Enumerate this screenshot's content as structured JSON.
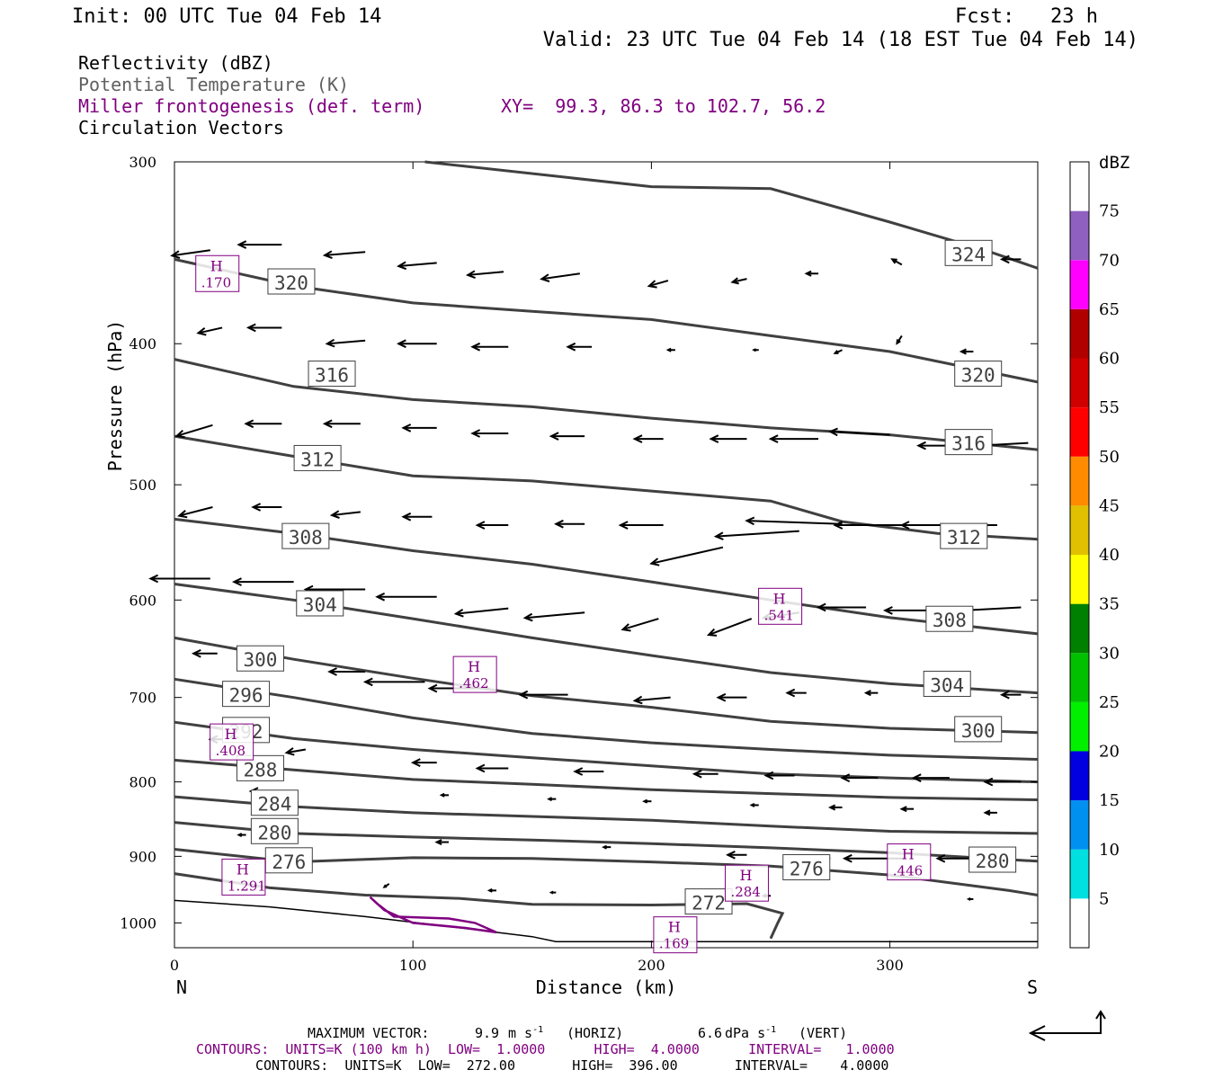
{
  "header": {
    "init": "Init: 00 UTC Tue 04 Feb 14",
    "fcst": "Fcst:   23 h",
    "valid": "Valid: 23 UTC Tue 04 Feb 14 (18 EST Tue 04 Feb 14)",
    "fields": [
      {
        "text": "Reflectivity (dBZ)",
        "color": "#000000"
      },
      {
        "text": "Potential Temperature (K)",
        "color": "#606060"
      },
      {
        "text": "Miller frontogenesis (def. term)",
        "color": "#800080"
      },
      {
        "text": "Circulation Vectors",
        "color": "#000000"
      }
    ],
    "xy": "XY=  99.3, 86.3 to 102.7, 56.2"
  },
  "chart_data": {
    "type": "cross-section",
    "ylabel": "Pressure (hPa)",
    "xlabel": "Distance (km)",
    "xlim": [
      0,
      362
    ],
    "ylim": [
      1040,
      300
    ],
    "y_scale": "log-pressure (inverted)",
    "x_ticks": [
      0,
      100,
      200,
      300
    ],
    "y_ticks": [
      300,
      400,
      500,
      600,
      700,
      800,
      900,
      1000
    ],
    "x_end_labels": {
      "left": "N",
      "right": "S"
    },
    "theta_contours": [
      {
        "value": 324,
        "points": [
          [
            105,
            300
          ],
          [
            200,
            312
          ],
          [
            250,
            313
          ],
          [
            300,
            330
          ],
          [
            340,
            345
          ],
          [
            362,
            355
          ]
        ],
        "labels": [
          [
            333,
            347
          ]
        ]
      },
      {
        "value": 320,
        "points": [
          [
            0,
            350
          ],
          [
            50,
            365
          ],
          [
            100,
            375
          ],
          [
            150,
            380
          ],
          [
            200,
            385
          ],
          [
            250,
            395
          ],
          [
            300,
            405
          ],
          [
            362,
            425
          ]
        ],
        "labels": [
          [
            49,
            363
          ],
          [
            337,
            420
          ]
        ]
      },
      {
        "value": 316,
        "points": [
          [
            0,
            410
          ],
          [
            50,
            428
          ],
          [
            100,
            437
          ],
          [
            150,
            442
          ],
          [
            200,
            450
          ],
          [
            250,
            457
          ],
          [
            300,
            462
          ],
          [
            362,
            473
          ]
        ],
        "labels": [
          [
            66,
            420
          ],
          [
            333,
            468
          ]
        ]
      },
      {
        "value": 312,
        "points": [
          [
            0,
            463
          ],
          [
            50,
            478
          ],
          [
            100,
            493
          ],
          [
            150,
            497
          ],
          [
            200,
            505
          ],
          [
            250,
            513
          ],
          [
            280,
            530
          ],
          [
            320,
            540
          ],
          [
            362,
            545
          ]
        ],
        "labels": [
          [
            60,
            480
          ],
          [
            331,
            543
          ]
        ]
      },
      {
        "value": 308,
        "points": [
          [
            0,
            528
          ],
          [
            50,
            540
          ],
          [
            100,
            555
          ],
          [
            150,
            567
          ],
          [
            200,
            583
          ],
          [
            250,
            600
          ],
          [
            300,
            617
          ],
          [
            362,
            633
          ]
        ],
        "labels": [
          [
            55,
            543
          ],
          [
            325,
            619
          ]
        ]
      },
      {
        "value": 304,
        "points": [
          [
            0,
            585
          ],
          [
            50,
            600
          ],
          [
            100,
            618
          ],
          [
            150,
            637
          ],
          [
            200,
            655
          ],
          [
            250,
            673
          ],
          [
            300,
            685
          ],
          [
            362,
            695
          ]
        ],
        "labels": [
          [
            61,
            604
          ],
          [
            324,
            686
          ]
        ]
      },
      {
        "value": 300,
        "points": [
          [
            0,
            637
          ],
          [
            50,
            659
          ],
          [
            100,
            679
          ],
          [
            150,
            698
          ],
          [
            200,
            711
          ],
          [
            250,
            727
          ],
          [
            300,
            735
          ],
          [
            362,
            740
          ]
        ],
        "labels": [
          [
            36,
            659
          ],
          [
            337,
            737
          ]
        ]
      },
      {
        "value": 296,
        "points": [
          [
            0,
            680
          ],
          [
            50,
            700
          ],
          [
            100,
            723
          ],
          [
            150,
            741
          ],
          [
            200,
            752
          ],
          [
            250,
            760
          ],
          [
            300,
            767
          ],
          [
            362,
            772
          ]
        ],
        "labels": [
          [
            30,
            697
          ]
        ]
      },
      {
        "value": 292,
        "points": [
          [
            0,
            728
          ],
          [
            50,
            747
          ],
          [
            100,
            760
          ],
          [
            150,
            770
          ],
          [
            200,
            780
          ],
          [
            250,
            790
          ],
          [
            300,
            795
          ],
          [
            362,
            800
          ]
        ],
        "labels": [
          [
            30,
            738
          ]
        ]
      },
      {
        "value": 288,
        "points": [
          [
            0,
            773
          ],
          [
            50,
            785
          ],
          [
            100,
            797
          ],
          [
            150,
            803
          ],
          [
            200,
            810
          ],
          [
            250,
            815
          ],
          [
            300,
            820
          ],
          [
            362,
            823
          ]
        ],
        "labels": [
          [
            36,
            784
          ]
        ]
      },
      {
        "value": 284,
        "points": [
          [
            0,
            819
          ],
          [
            50,
            832
          ],
          [
            100,
            840
          ],
          [
            150,
            845
          ],
          [
            200,
            850
          ],
          [
            250,
            858
          ],
          [
            300,
            865
          ],
          [
            362,
            868
          ]
        ],
        "labels": [
          [
            42,
            828
          ]
        ]
      },
      {
        "value": 280,
        "points": [
          [
            0,
            853
          ],
          [
            50,
            868
          ],
          [
            100,
            873
          ],
          [
            150,
            877
          ],
          [
            200,
            882
          ],
          [
            250,
            888
          ],
          [
            300,
            895
          ],
          [
            362,
            907
          ]
        ],
        "labels": [
          [
            42,
            866
          ],
          [
            343,
            906
          ]
        ]
      },
      {
        "value": 276,
        "points": [
          [
            0,
            890
          ],
          [
            50,
            908
          ],
          [
            100,
            902
          ],
          [
            150,
            903
          ],
          [
            200,
            908
          ],
          [
            250,
            914
          ],
          [
            300,
            927
          ],
          [
            350,
            950
          ],
          [
            362,
            957
          ]
        ],
        "labels": [
          [
            48,
            907
          ],
          [
            265,
            917
          ]
        ]
      },
      {
        "value": 272,
        "points": [
          [
            0,
            925
          ],
          [
            40,
            946
          ],
          [
            80,
            957
          ],
          [
            120,
            962
          ],
          [
            150,
            971
          ],
          [
            200,
            972
          ],
          [
            240,
            970
          ],
          [
            255,
            985
          ],
          [
            253,
            1000
          ],
          [
            250,
            1025
          ]
        ],
        "labels": [
          [
            224,
            968
          ]
        ]
      }
    ],
    "terrain": {
      "points": [
        [
          0,
          965
        ],
        [
          40,
          975
        ],
        [
          80,
          990
        ],
        [
          120,
          1008
        ],
        [
          150,
          1022
        ],
        [
          160,
          1030
        ],
        [
          362,
          1030
        ]
      ]
    },
    "frontogenesis_maxima": [
      {
        "x": 18,
        "p": 358,
        "label": ".170"
      },
      {
        "x": 254,
        "p": 606,
        "label": ".541"
      },
      {
        "x": 126,
        "p": 675,
        "label": ".462"
      },
      {
        "x": 24,
        "p": 751,
        "label": ".408"
      },
      {
        "x": 29,
        "p": 930,
        "label": "1.291"
      },
      {
        "x": 240,
        "p": 939,
        "label": ".284"
      },
      {
        "x": 308,
        "p": 908,
        "label": ".446"
      },
      {
        "x": 210,
        "p": 1019,
        "label": ".169"
      }
    ],
    "frontogenesis_contour": {
      "points": [
        [
          82,
          960
        ],
        [
          88,
          980
        ],
        [
          100,
          1000
        ],
        [
          122,
          1008
        ],
        [
          135,
          1015
        ],
        [
          126,
          1000
        ],
        [
          115,
          993
        ],
        [
          92,
          990
        ],
        [
          85,
          970
        ]
      ]
    },
    "vectors": [
      [
        15,
        345,
        -16,
        5
      ],
      [
        45,
        342,
        -18,
        0
      ],
      [
        80,
        346,
        -17,
        3
      ],
      [
        110,
        352,
        -16,
        3
      ],
      [
        138,
        357,
        -15,
        3
      ],
      [
        170,
        358,
        -16,
        5
      ],
      [
        207,
        362,
        -8,
        5
      ],
      [
        240,
        361,
        -6,
        3
      ],
      [
        270,
        358,
        -5,
        0
      ],
      [
        305,
        353,
        -4,
        -5
      ],
      [
        355,
        350,
        -8,
        0
      ],
      [
        20,
        390,
        -10,
        5
      ],
      [
        45,
        390,
        -14,
        0
      ],
      [
        80,
        398,
        -16,
        3
      ],
      [
        110,
        400,
        -16,
        0
      ],
      [
        140,
        402,
        -15,
        0
      ],
      [
        175,
        402,
        -10,
        0
      ],
      [
        210,
        404,
        -3,
        0
      ],
      [
        245,
        404,
        -2,
        0
      ],
      [
        280,
        404,
        -3,
        3
      ],
      [
        305,
        395,
        -2,
        7
      ],
      [
        335,
        405,
        -5,
        0
      ],
      [
        16,
        455,
        -15,
        10
      ],
      [
        45,
        454,
        -15,
        0
      ],
      [
        78,
        454,
        -15,
        0
      ],
      [
        110,
        457,
        -14,
        0
      ],
      [
        140,
        461,
        -15,
        0
      ],
      [
        172,
        463,
        -14,
        0
      ],
      [
        205,
        465,
        -12,
        0
      ],
      [
        240,
        465,
        -15,
        0
      ],
      [
        270,
        465,
        -20,
        0
      ],
      [
        300,
        462,
        -25,
        -3
      ],
      [
        330,
        470,
        -18,
        0
      ],
      [
        358,
        468,
        -25,
        3
      ],
      [
        16,
        518,
        -14,
        8
      ],
      [
        45,
        518,
        -12,
        0
      ],
      [
        78,
        522,
        -12,
        3
      ],
      [
        108,
        526,
        -12,
        0
      ],
      [
        140,
        533,
        -13,
        0
      ],
      [
        172,
        532,
        -12,
        0
      ],
      [
        205,
        533,
        -18,
        0
      ],
      [
        230,
        552,
        -30,
        15
      ],
      [
        262,
        538,
        -35,
        5
      ],
      [
        280,
        532,
        -40,
        -3
      ],
      [
        312,
        533,
        -35,
        0
      ],
      [
        345,
        533,
        -40,
        0
      ],
      [
        15,
        580,
        -25,
        0
      ],
      [
        50,
        583,
        -25,
        0
      ],
      [
        80,
        590,
        -25,
        0
      ],
      [
        110,
        597,
        -25,
        0
      ],
      [
        140,
        608,
        -22,
        5
      ],
      [
        172,
        612,
        -25,
        5
      ],
      [
        203,
        618,
        -15,
        10
      ],
      [
        242,
        618,
        -18,
        15
      ],
      [
        262,
        612,
        -15,
        5
      ],
      [
        290,
        607,
        -20,
        0
      ],
      [
        318,
        610,
        -20,
        0
      ],
      [
        355,
        607,
        -25,
        3
      ],
      [
        18,
        653,
        -10,
        0
      ],
      [
        46,
        662,
        -15,
        0
      ],
      [
        80,
        672,
        -15,
        0
      ],
      [
        105,
        683,
        -25,
        0
      ],
      [
        132,
        690,
        -25,
        0
      ],
      [
        165,
        697,
        -20,
        0
      ],
      [
        208,
        700,
        -15,
        3
      ],
      [
        240,
        700,
        -12,
        0
      ],
      [
        265,
        695,
        -8,
        0
      ],
      [
        295,
        695,
        -5,
        0
      ],
      [
        320,
        695,
        -5,
        0
      ],
      [
        355,
        697,
        -8,
        0
      ],
      [
        25,
        748,
        -10,
        0
      ],
      [
        55,
        760,
        -8,
        3
      ],
      [
        110,
        776,
        -10,
        0
      ],
      [
        140,
        783,
        -13,
        0
      ],
      [
        180,
        787,
        -12,
        0
      ],
      [
        228,
        790,
        -10,
        0
      ],
      [
        260,
        792,
        -12,
        0
      ],
      [
        295,
        795,
        -15,
        0
      ],
      [
        325,
        795,
        -15,
        0
      ],
      [
        355,
        800,
        -15,
        0
      ],
      [
        40,
        812,
        -8,
        0
      ],
      [
        115,
        817,
        -3,
        0
      ],
      [
        160,
        822,
        -3,
        0
      ],
      [
        200,
        825,
        -3,
        0
      ],
      [
        245,
        830,
        -3,
        0
      ],
      [
        280,
        833,
        -5,
        0
      ],
      [
        310,
        835,
        -5,
        0
      ],
      [
        345,
        840,
        -5,
        0
      ],
      [
        30,
        870,
        -3,
        0
      ],
      [
        115,
        880,
        -5,
        0
      ],
      [
        183,
        887,
        -3,
        0
      ],
      [
        240,
        898,
        -8,
        0
      ],
      [
        275,
        903,
        -15,
        0
      ],
      [
        306,
        903,
        -25,
        0
      ],
      [
        340,
        903,
        -20,
        0
      ],
      [
        90,
        940,
        -2,
        3
      ],
      [
        135,
        950,
        -3,
        0
      ],
      [
        160,
        953,
        -2,
        0
      ],
      [
        250,
        958,
        -3,
        0
      ],
      [
        335,
        963,
        -2,
        0
      ]
    ],
    "reflectivity_colorbar": {
      "unit": "dBZ",
      "levels": [
        5,
        10,
        15,
        20,
        25,
        30,
        35,
        40,
        45,
        50,
        55,
        60,
        65,
        70,
        75
      ],
      "colors": [
        "#ffffff",
        "#00e0e0",
        "#0090f0",
        "#0000e0",
        "#00f000",
        "#00c000",
        "#008000",
        "#ffff00",
        "#e0c000",
        "#ff8c00",
        "#ff0000",
        "#d00000",
        "#b00000",
        "#ff00ff",
        "#9060c0",
        "#ffffff"
      ]
    }
  },
  "footer": {
    "max_vector_label": "MAXIMUM VECTOR:",
    "max_horiz_value": "9.9",
    "max_horiz_units": "(HORIZ)",
    "max_vert_value": "6.6",
    "max_vert_units": "(VERT)",
    "contours_front": "CONTOURS:  UNITS=K (100 km h)  LOW=  1.0000      HIGH=  4.0000      INTERVAL=   1.0000",
    "contours_theta": "CONTOURS:  UNITS=K  LOW=  272.00       HIGH=  396.00       INTERVAL=    4.0000"
  }
}
